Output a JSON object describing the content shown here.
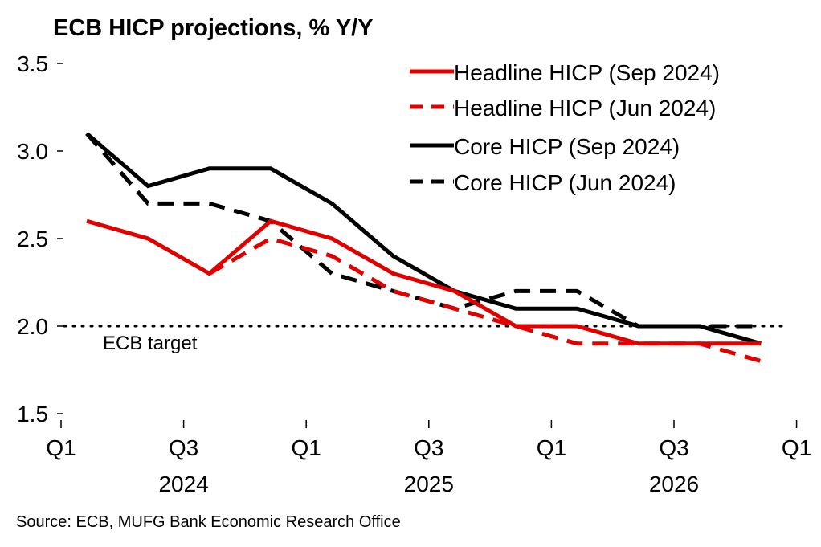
{
  "chart_data": {
    "type": "line",
    "title": "ECB HICP projections, % Y/Y",
    "source": "Source: ECB, MUFG Bank Economic Research Office",
    "ylim": [
      1.5,
      3.5
    ],
    "yticks": [
      "1.5",
      "2.0",
      "2.5",
      "3.0",
      "3.5"
    ],
    "x_quarter_ticks": [
      "Q1",
      "Q3",
      "Q1",
      "Q3",
      "Q1",
      "Q3",
      "Q1"
    ],
    "x_year_labels": [
      "2024",
      "2025",
      "2026"
    ],
    "x": [
      "2024Q1",
      "2024Q2",
      "2024Q3",
      "2024Q4",
      "2025Q1",
      "2025Q2",
      "2025Q3",
      "2025Q4",
      "2026Q1",
      "2026Q2",
      "2026Q3",
      "2026Q4"
    ],
    "series": [
      {
        "name": "Headline HICP (Sep 2024)",
        "color": "#e00000",
        "dash": "solid",
        "values": [
          2.6,
          2.5,
          2.3,
          2.6,
          2.5,
          2.3,
          2.2,
          2.0,
          2.0,
          1.9,
          1.9,
          1.9
        ]
      },
      {
        "name": "Headline HICP (Jun 2024)",
        "color": "#e00000",
        "dash": "dashed",
        "values": [
          null,
          null,
          2.3,
          2.5,
          2.4,
          2.2,
          2.1,
          2.0,
          1.9,
          1.9,
          1.9,
          1.8
        ]
      },
      {
        "name": "Core HICP (Sep 2024)",
        "color": "#000000",
        "dash": "solid",
        "values": [
          3.1,
          2.8,
          2.9,
          2.9,
          2.7,
          2.4,
          2.2,
          2.1,
          2.1,
          2.0,
          2.0,
          1.9
        ]
      },
      {
        "name": "Core HICP (Jun 2024)",
        "color": "#000000",
        "dash": "dashed",
        "values": [
          3.1,
          2.7,
          2.7,
          2.6,
          2.3,
          2.2,
          2.1,
          2.2,
          2.2,
          2.0,
          2.0,
          2.0
        ]
      }
    ],
    "reference_line": {
      "value": 2.0,
      "label": "ECB target",
      "style": "dotted"
    },
    "grid": false,
    "legend_position": "top-right"
  }
}
